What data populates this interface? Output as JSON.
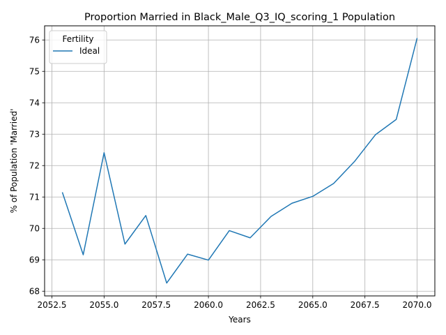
{
  "chart_data": {
    "type": "line",
    "title": "Proportion Married in Black_Male_Q3_IQ_scoring_1 Population",
    "xlabel": "Years",
    "ylabel": "% of Population 'Married'",
    "xlim": [
      2052.15,
      2070.85
    ],
    "ylim": [
      67.85,
      76.45
    ],
    "xticks": [
      2052.5,
      2055.0,
      2057.5,
      2060.0,
      2062.5,
      2065.0,
      2067.5,
      2070.0
    ],
    "xtick_labels": [
      "2052.5",
      "2055.0",
      "2057.5",
      "2060.0",
      "2062.5",
      "2065.0",
      "2067.5",
      "2070.0"
    ],
    "yticks": [
      68,
      69,
      70,
      71,
      72,
      73,
      74,
      75,
      76
    ],
    "ytick_labels": [
      "68",
      "69",
      "70",
      "71",
      "72",
      "73",
      "74",
      "75",
      "76"
    ],
    "grid": true,
    "legend": {
      "title": "Fertility",
      "placement": "top-left"
    },
    "series": [
      {
        "name": "Ideal",
        "color": "#1f77b4",
        "x": [
          2053,
          2054,
          2055,
          2056,
          2057,
          2058,
          2059,
          2060,
          2061,
          2062,
          2063,
          2064,
          2065,
          2066,
          2067,
          2068,
          2069,
          2070
        ],
        "y": [
          71.15,
          69.16,
          72.41,
          69.5,
          70.41,
          68.26,
          69.18,
          68.99,
          69.93,
          69.7,
          70.38,
          70.8,
          71.02,
          71.43,
          72.13,
          72.98,
          73.47,
          76.06
        ]
      }
    ]
  }
}
